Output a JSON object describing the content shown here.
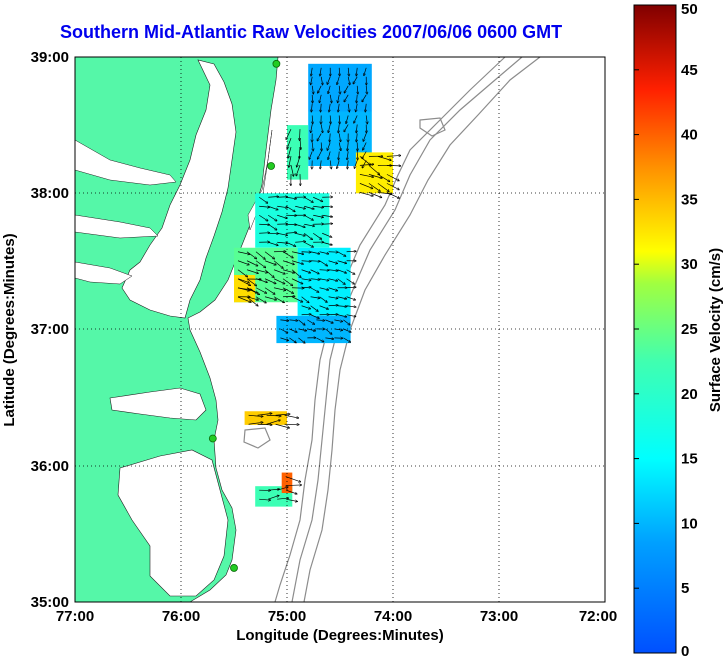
{
  "title": "Southern Mid-Atlantic Raw Velocities 2007/06/06 0600 GMT",
  "colors": {
    "land": "#55f7a8",
    "water": "#ffffff",
    "bathymetry": "#8c8c8c",
    "grid": "#000000",
    "vectors": "#000000",
    "title": "#0000ee",
    "station": "#22cc22"
  },
  "chart_data": {
    "type": "map",
    "xlabel": "Longitude (Degrees:Minutes)",
    "ylabel": "Latitude (Degrees:Minutes)",
    "x_ticks": [
      "77:00",
      "76:00",
      "75:00",
      "74:00",
      "73:00",
      "72:00"
    ],
    "y_ticks": [
      "39:00",
      "38:00",
      "37:00",
      "36:00",
      "35:00"
    ],
    "xlim": [
      -77,
      -72
    ],
    "ylim": [
      35,
      39
    ],
    "grid": "dotted",
    "colorbar": {
      "label": "Surface Velocity (cm/s)",
      "ticks": [
        "50",
        "45",
        "40",
        "35",
        "30",
        "25",
        "20",
        "15",
        "10",
        "5",
        "0"
      ],
      "range": [
        0,
        50
      ],
      "colormap": "jet"
    },
    "stations": [
      {
        "lon": -75.1,
        "lat": 38.95
      },
      {
        "lon": -75.15,
        "lat": 38.2
      },
      {
        "lon": -75.7,
        "lat": 36.2
      },
      {
        "lon": -75.5,
        "lat": 35.25
      }
    ],
    "velocity_patches": [
      {
        "lon": [
          -74.8,
          -74.2
        ],
        "lat": [
          38.6,
          38.95
        ],
        "speed": 9
      },
      {
        "lon": [
          -74.8,
          -74.2
        ],
        "lat": [
          38.2,
          38.6
        ],
        "speed": 10
      },
      {
        "lon": [
          -75.0,
          -74.8
        ],
        "lat": [
          38.1,
          38.5
        ],
        "speed": 22
      },
      {
        "lon": [
          -74.35,
          -74.0
        ],
        "lat": [
          38.0,
          38.3
        ],
        "speed": 32
      },
      {
        "lon": [
          -75.3,
          -74.6
        ],
        "lat": [
          37.6,
          38.0
        ],
        "speed": 18
      },
      {
        "lon": [
          -75.5,
          -74.9
        ],
        "lat": [
          37.2,
          37.6
        ],
        "speed": 24
      },
      {
        "lon": [
          -74.9,
          -74.4
        ],
        "lat": [
          37.1,
          37.6
        ],
        "speed": 14
      },
      {
        "lon": [
          -75.1,
          -74.4
        ],
        "lat": [
          36.9,
          37.1
        ],
        "speed": 10
      },
      {
        "lon": [
          -75.5,
          -75.3
        ],
        "lat": [
          37.2,
          37.4
        ],
        "speed": 33
      },
      {
        "lon": [
          -75.4,
          -75.0
        ],
        "lat": [
          36.3,
          36.4
        ],
        "speed": 34
      },
      {
        "lon": [
          -75.3,
          -74.95
        ],
        "lat": [
          35.7,
          35.85
        ],
        "speed": 22
      },
      {
        "lon": [
          -75.05,
          -74.95
        ],
        "lat": [
          35.8,
          35.95
        ],
        "speed": 40
      }
    ]
  }
}
